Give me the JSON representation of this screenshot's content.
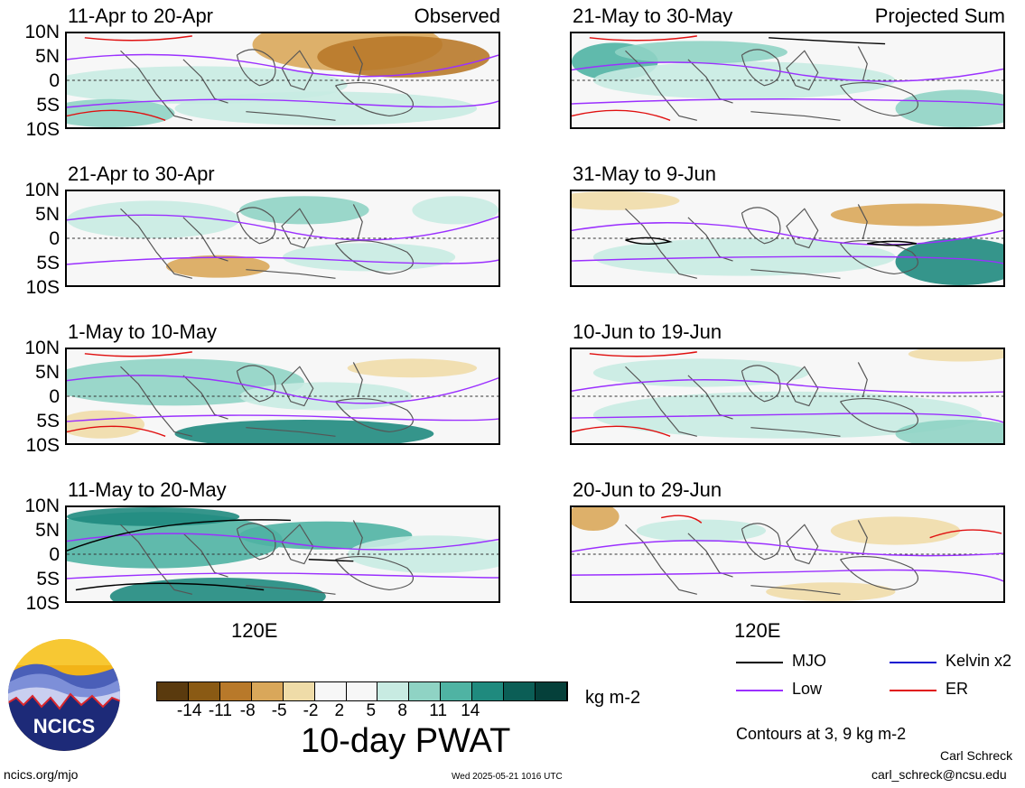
{
  "panels": [
    {
      "col": 0,
      "row": 0,
      "title": "11-Apr to 20-Apr",
      "corner": "Observed"
    },
    {
      "col": 0,
      "row": 1,
      "title": "21-Apr to 30-Apr",
      "corner": ""
    },
    {
      "col": 0,
      "row": 2,
      "title": "1-May to 10-May",
      "corner": ""
    },
    {
      "col": 0,
      "row": 3,
      "title": "11-May to 20-May",
      "corner": ""
    },
    {
      "col": 1,
      "row": 0,
      "title": "21-May to 30-May",
      "corner": "Projected Sum"
    },
    {
      "col": 1,
      "row": 1,
      "title": "31-May to 9-Jun",
      "corner": ""
    },
    {
      "col": 1,
      "row": 2,
      "title": "10-Jun to 19-Jun",
      "corner": ""
    },
    {
      "col": 1,
      "row": 3,
      "title": "20-Jun to 29-Jun",
      "corner": ""
    }
  ],
  "lat_labels": [
    "10N",
    "5N",
    "0",
    "5S",
    "10S"
  ],
  "lon_label": "120E",
  "colorbar": {
    "colors": [
      "#5a3a0e",
      "#8a5a14",
      "#b8792a",
      "#d9a75a",
      "#efdca8",
      "#f7f7f7",
      "#f7f7f7",
      "#c8ebe2",
      "#8fd3c4",
      "#4fb3a3",
      "#1f8a7e",
      "#0b5e56",
      "#05403a"
    ],
    "ticks": [
      "-14",
      "-11",
      "-8",
      "-5",
      "-2",
      "2",
      "5",
      "8",
      "11",
      "14"
    ],
    "units": "kg m-2",
    "title": "10-day PWAT"
  },
  "legend": [
    {
      "label": "MJO",
      "color": "#000000"
    },
    {
      "label": "Kelvin x2",
      "color": "#1010d0"
    },
    {
      "label": "Low",
      "color": "#9b30ff"
    },
    {
      "label": "ER",
      "color": "#e01010"
    }
  ],
  "contours_note": "Contours at 3, 9 kg m-2",
  "author": "Carl Schreck",
  "email": "carl_schreck@ncsu.edu",
  "site": "ncics.org/mjo",
  "timestamp": "Wed 2025-05-21 1016 UTC",
  "logo_text": "NCICS"
}
